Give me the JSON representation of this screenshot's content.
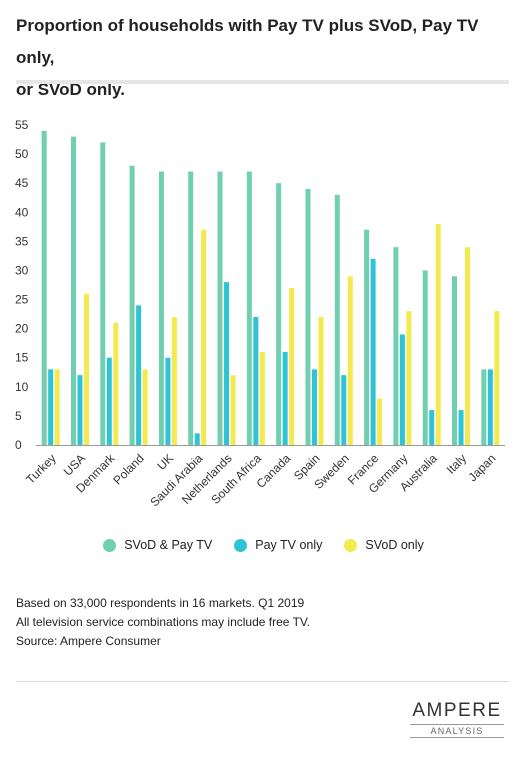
{
  "title": {
    "line1": "Proportion of households with Pay TV plus SVoD, Pay TV only,",
    "line2": "or SVoD only."
  },
  "colors": {
    "svod_pay_tv": "#6fcfae",
    "pay_tv_only": "#2ec4d6",
    "svod_only": "#f2ea4e",
    "axis": "#999999",
    "text": "#222222"
  },
  "chart_data": {
    "type": "bar",
    "categories": [
      "Turkey",
      "USA",
      "Denmark",
      "Poland",
      "UK",
      "Saudi Arabia",
      "Netherlands",
      "South Africa",
      "Canada",
      "Spain",
      "Sweden",
      "France",
      "Germany",
      "Australia",
      "Italy",
      "Japan"
    ],
    "series": [
      {
        "name": "SVoD & Pay TV",
        "values": [
          54,
          53,
          52,
          48,
          47,
          47,
          47,
          47,
          45,
          44,
          43,
          37,
          34,
          30,
          29,
          13
        ]
      },
      {
        "name": "Pay TV only",
        "values": [
          13,
          12,
          15,
          24,
          15,
          2,
          28,
          22,
          16,
          13,
          12,
          32,
          19,
          6,
          6,
          13
        ]
      },
      {
        "name": "SVoD only",
        "values": [
          13,
          26,
          21,
          13,
          22,
          37,
          12,
          16,
          27,
          22,
          29,
          8,
          23,
          38,
          34,
          23
        ]
      }
    ],
    "yticks": [
      "0",
      "5",
      "10",
      "15",
      "20",
      "25",
      "30",
      "35",
      "40",
      "45",
      "50",
      "55"
    ],
    "ylim": [
      0,
      55
    ],
    "legend_position": "bottom",
    "grid": false
  },
  "notes": [
    "Based on 33,000 respondents in 16 markets. Q1 2019",
    "All television service combinations may include free TV.",
    "Source: Ampere Consumer"
  ],
  "logo": {
    "main": "AMPERE",
    "sub": "ANALYSIS"
  }
}
